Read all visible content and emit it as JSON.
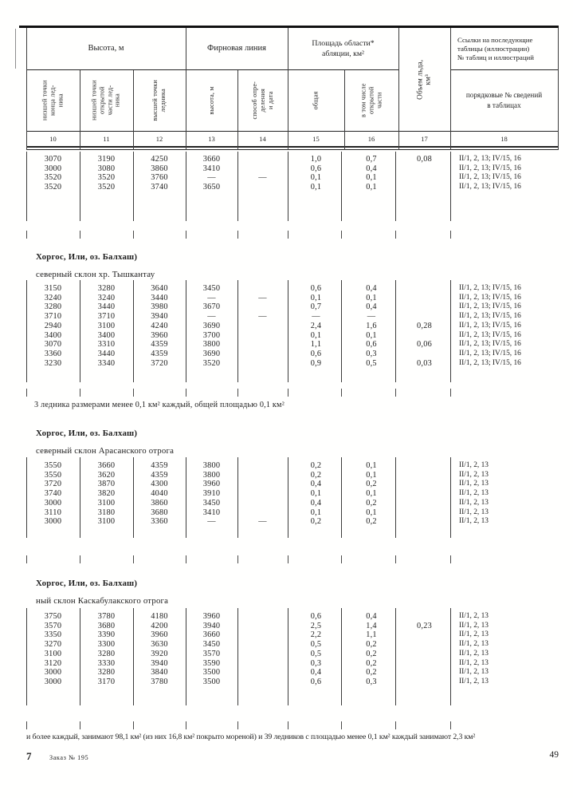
{
  "header": {
    "groups": {
      "height": "Высота, м",
      "firn": "Фирновая линия",
      "ablation": "Площадь области*\nабляции, км²",
      "ice_volume": "Объем льда, км³",
      "refs": "Ссылки на последующие\nтаблицы (иллюстрации)\n№ таблиц и иллюстраций"
    },
    "subcols": [
      {
        "num": "10",
        "label": "низшей точки\nконца лед-\nника"
      },
      {
        "num": "11",
        "label": "низшей точки\nоткрытой\nчасти лед-\nника"
      },
      {
        "num": "12",
        "label": "высшей точки\nледника"
      },
      {
        "num": "13",
        "label": "высота, м"
      },
      {
        "num": "14",
        "label": "способ опре-\nделения\nи дата"
      },
      {
        "num": "15",
        "label": "общая"
      },
      {
        "num": "16",
        "label": "в том числе\nоткрытой\nчасти"
      },
      {
        "num": "17",
        "label": ""
      },
      {
        "num": "18",
        "label": "порядковые № сведений\nв таблицах"
      }
    ]
  },
  "sections": [
    {
      "id": "b1",
      "title": "",
      "subtitle": "",
      "rows": [
        [
          "3070",
          "3190",
          "4250",
          "3660",
          "",
          "1,0",
          "0,7",
          "0,08",
          "II/1, 2, 13; IV/15, 16"
        ],
        [
          "3000",
          "3080",
          "3860",
          "3410",
          "",
          "0,6",
          "0,4",
          "",
          "II/1, 2, 13; IV/15, 16"
        ],
        [
          "3520",
          "3520",
          "3760",
          "—",
          "—",
          "0,1",
          "0,1",
          "",
          "II/1, 2, 13; IV/15, 16"
        ],
        [
          "3520",
          "3520",
          "3740",
          "3650",
          "",
          "0,1",
          "0,1",
          "",
          "II/1, 2, 13; IV/15, 16"
        ]
      ]
    },
    {
      "id": "b2",
      "title": "Хоргос, Или, оз. Балхаш)",
      "subtitle": "северный склон хр. Тышкантау",
      "note": "3 ледника размерами менее 0,1 км² каждый, общей площадью 0,1 км²",
      "rows": [
        [
          "3150",
          "3280",
          "3640",
          "3450",
          "",
          "0,6",
          "0,4",
          "",
          "II/1, 2, 13; IV/15, 16"
        ],
        [
          "3240",
          "3240",
          "3440",
          "—",
          "—",
          "0,1",
          "0,1",
          "",
          "II/1, 2, 13; IV/15, 16"
        ],
        [
          "3280",
          "3440",
          "3980",
          "3670",
          "",
          "0,7",
          "0,4",
          "",
          "II/1, 2, 13; IV/15, 16"
        ],
        [
          "3710",
          "3710",
          "3940",
          "—",
          "—",
          "—",
          "—",
          "",
          "II/1, 2, 13; IV/15, 16"
        ],
        [
          "2940",
          "3100",
          "4240",
          "3690",
          "",
          "2,4",
          "1,6",
          "0,28",
          "II/1, 2, 13; IV/15, 16"
        ],
        [
          "3400",
          "3400",
          "3960",
          "3700",
          "",
          "0,1",
          "0,1",
          "",
          "II/1, 2, 13; IV/15, 16"
        ],
        [
          "3070",
          "3310",
          "4359",
          "3800",
          "",
          "1,1",
          "0,6",
          "0,06",
          "II/1, 2, 13; IV/15, 16"
        ],
        [
          "3360",
          "3440",
          "4359",
          "3690",
          "",
          "0,6",
          "0,3",
          "",
          "II/1, 2, 13; IV/15, 16"
        ],
        [
          "3230",
          "3340",
          "3720",
          "3520",
          "",
          "0,9",
          "0,5",
          "0,03",
          "II/1, 2, 13; IV/15, 16"
        ]
      ]
    },
    {
      "id": "b3",
      "title": "Хоргос, Или, оз. Балхаш)",
      "subtitle": "северный склон Арасанского отрога",
      "rows": [
        [
          "3550",
          "3660",
          "4359",
          "3800",
          "",
          "0,2",
          "0,1",
          "",
          "II/1, 2, 13"
        ],
        [
          "3550",
          "3620",
          "4359",
          "3800",
          "",
          "0,2",
          "0,1",
          "",
          "II/1, 2, 13"
        ],
        [
          "3720",
          "3870",
          "4300",
          "3960",
          "",
          "0,4",
          "0,2",
          "",
          "II/1, 2, 13"
        ],
        [
          "3740",
          "3820",
          "4040",
          "3910",
          "",
          "0,1",
          "0,1",
          "",
          "II/1, 2, 13"
        ],
        [
          "3000",
          "3100",
          "3860",
          "3450",
          "",
          "0,4",
          "0,2",
          "",
          "II/1, 2, 13"
        ],
        [
          "3110",
          "3180",
          "3680",
          "3410",
          "",
          "0,1",
          "0,1",
          "",
          "II/1, 2, 13"
        ],
        [
          "3000",
          "3100",
          "3360",
          "—",
          "—",
          "0,2",
          "0,2",
          "",
          "II/1, 2, 13"
        ]
      ]
    },
    {
      "id": "b4",
      "title": "Хоргос, Или, оз. Балхаш)",
      "subtitle": "ный склон Каскабулакского отрога",
      "rows": [
        [
          "3750",
          "3780",
          "4180",
          "3960",
          "",
          "0,6",
          "0,4",
          "",
          "II/1, 2, 13"
        ],
        [
          "3570",
          "3680",
          "4200",
          "3940",
          "",
          "2,5",
          "1,4",
          "0,23",
          "II/1, 2, 13"
        ],
        [
          "3350",
          "3390",
          "3960",
          "3660",
          "",
          "2,2",
          "1,1",
          "",
          "II/1, 2, 13"
        ],
        [
          "3270",
          "3300",
          "3630",
          "3450",
          "",
          "0,5",
          "0,2",
          "",
          "II/1, 2, 13"
        ],
        [
          "3100",
          "3280",
          "3920",
          "3570",
          "",
          "0,5",
          "0,2",
          "",
          "II/1, 2, 13"
        ],
        [
          "3120",
          "3330",
          "3940",
          "3590",
          "",
          "0,3",
          "0,2",
          "",
          "II/1, 2, 13"
        ],
        [
          "3000",
          "3280",
          "3840",
          "3500",
          "",
          "0,4",
          "0,2",
          "",
          "II/1, 2, 13"
        ],
        [
          "3000",
          "3170",
          "3780",
          "3500",
          "",
          "0,6",
          "0,3",
          "",
          "II/1, 2, 13"
        ]
      ]
    }
  ],
  "bottom_note": "и более каждый, занимают 98,1 км² (из них 16,8 км² покрыто мореной)  и 39 ледников с площадью менее 0,1 км² каждый занимают 2,3 км²",
  "footer": {
    "left_num": "7",
    "left_text": "Заказ № 195",
    "page_num": "49"
  }
}
